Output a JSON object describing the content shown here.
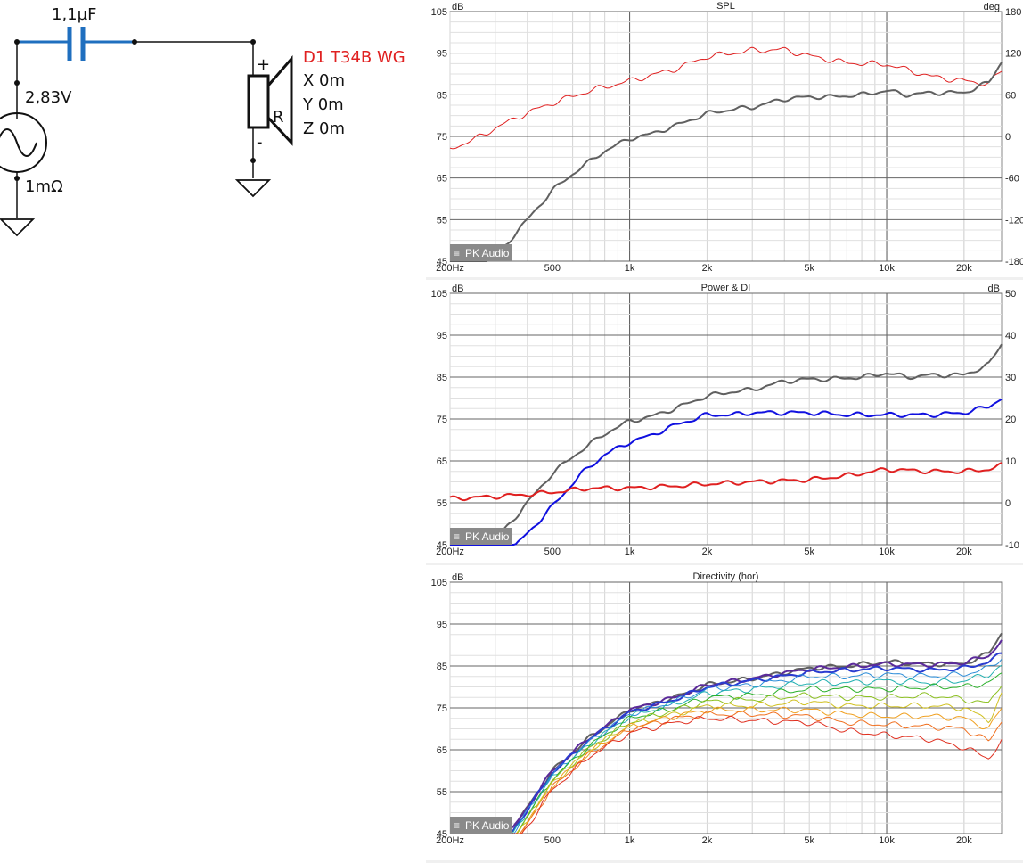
{
  "schematic": {
    "capacitor_label": "1,1µF",
    "source_voltage": "2,83V",
    "source_resistance": "1mΩ",
    "plus_sign": "+",
    "minus_sign": "-",
    "resistor_label": "R",
    "driver_name": "D1 T34B WG",
    "pos_x": "X  0m",
    "pos_y": "Y  0m",
    "pos_z": "Z  0m",
    "colors": {
      "wire": "#1f6fbf",
      "line": "#000000",
      "driver_name": "#e02020"
    }
  },
  "branding": {
    "badge": "PK Audio"
  },
  "chart_data": [
    {
      "type": "line",
      "title": "SPL",
      "ylabel": "dB",
      "y2label": "deg",
      "x_scale": "log",
      "xlim": [
        200,
        28000
      ],
      "ylim": [
        45,
        105
      ],
      "y2lim": [
        -180,
        180
      ],
      "x_ticks": [
        200,
        500,
        1000,
        2000,
        5000,
        10000,
        20000
      ],
      "x_tick_labels": [
        "200Hz",
        "500",
        "1k",
        "2k",
        "5k",
        "10k",
        "20k"
      ],
      "y_ticks": [
        45,
        55,
        65,
        75,
        85,
        95,
        105
      ],
      "y_tick_labels": [
        "45",
        "55",
        "65",
        "75",
        "85",
        "95",
        "105"
      ],
      "y2_ticks": [
        -180,
        -120,
        -60,
        0,
        60,
        120,
        180
      ],
      "y2_tick_labels": [
        "-180",
        "-120",
        "-60",
        "0",
        "60",
        "120",
        "180"
      ],
      "grid": true,
      "series": [
        {
          "color": "#e02020",
          "axis": "right",
          "width": 1,
          "x": [
            200,
            250,
            300,
            400,
            500,
            700,
            1000,
            1500,
            2000,
            3000,
            4000,
            5000,
            7000,
            10000,
            12000,
            15000,
            20000,
            25000,
            28000
          ],
          "y": [
            -18,
            -4,
            12,
            34,
            48,
            66,
            80,
            97,
            115,
            124,
            125,
            116,
            106,
            104,
            96,
            86,
            80,
            76,
            95
          ]
        },
        {
          "color": "#606060",
          "axis": "left",
          "width": 2,
          "x": [
            200,
            300,
            400,
            500,
            600,
            700,
            800,
            1000,
            1200,
            1500,
            2000,
            2500,
            3000,
            4000,
            5000,
            6000,
            8000,
            10000,
            12000,
            15000,
            20000,
            25000,
            28000
          ],
          "y": [
            40,
            46,
            55,
            62,
            66,
            69,
            71.5,
            74.5,
            75.5,
            77.5,
            80.5,
            81.5,
            82,
            84,
            84.5,
            84.5,
            85,
            86,
            85,
            85.5,
            85.5,
            88,
            93
          ]
        }
      ]
    },
    {
      "type": "line",
      "title": "Power & DI",
      "ylabel": "dB",
      "y2label": "dB",
      "x_scale": "log",
      "xlim": [
        200,
        28000
      ],
      "ylim": [
        45,
        105
      ],
      "y2lim": [
        -10,
        50
      ],
      "x_ticks": [
        200,
        500,
        1000,
        2000,
        5000,
        10000,
        20000
      ],
      "x_tick_labels": [
        "200Hz",
        "500",
        "1k",
        "2k",
        "5k",
        "10k",
        "20k"
      ],
      "y_ticks": [
        45,
        55,
        65,
        75,
        85,
        95,
        105
      ],
      "y_tick_labels": [
        "45",
        "55",
        "65",
        "75",
        "85",
        "95",
        "105"
      ],
      "y2_ticks": [
        -10,
        0,
        10,
        20,
        30,
        40,
        50
      ],
      "y2_tick_labels": [
        "-10",
        "0",
        "10",
        "20",
        "30",
        "40",
        "50"
      ],
      "grid": true,
      "series": [
        {
          "color": "#606060",
          "axis": "left",
          "width": 2,
          "x": [
            200,
            300,
            400,
            500,
            600,
            700,
            800,
            1000,
            1200,
            1500,
            2000,
            2500,
            3000,
            4000,
            5000,
            6000,
            8000,
            10000,
            12000,
            15000,
            20000,
            25000,
            28000
          ],
          "y": [
            40,
            46,
            55,
            62,
            66,
            69,
            71.5,
            74.5,
            75.5,
            77.5,
            80.5,
            81.5,
            82,
            84,
            84.5,
            84.5,
            85,
            86,
            85,
            85.5,
            85.5,
            88,
            93
          ]
        },
        {
          "color": "#1010e0",
          "axis": "left",
          "width": 2,
          "x": [
            200,
            350,
            450,
            550,
            650,
            800,
            1000,
            1200,
            1500,
            2000,
            2500,
            3000,
            4000,
            5000,
            7000,
            10000,
            15000,
            20000,
            25000,
            28000
          ],
          "y": [
            38,
            44,
            51,
            57,
            62,
            66.5,
            69.5,
            71,
            73.5,
            76,
            76,
            76.5,
            76.5,
            76.5,
            76,
            76,
            76,
            76.5,
            78,
            80
          ]
        },
        {
          "color": "#e02020",
          "axis": "right",
          "width": 2,
          "x": [
            200,
            300,
            400,
            500,
            700,
            1000,
            1500,
            2000,
            3000,
            5000,
            7000,
            10000,
            15000,
            20000,
            25000,
            28000
          ],
          "y": [
            1,
            1.5,
            2,
            2.5,
            3.5,
            3.5,
            4,
            4.5,
            5,
            5.5,
            6.5,
            8,
            7.5,
            7.5,
            8,
            9
          ]
        }
      ]
    },
    {
      "type": "line",
      "title": "Directivity (hor)",
      "ylabel": "dB",
      "x_scale": "log",
      "xlim": [
        200,
        28000
      ],
      "ylim": [
        45,
        105
      ],
      "x_ticks": [
        200,
        500,
        1000,
        2000,
        5000,
        10000,
        20000
      ],
      "x_tick_labels": [
        "200Hz",
        "500",
        "1k",
        "2k",
        "5k",
        "10k",
        "20k"
      ],
      "y_ticks": [
        45,
        55,
        65,
        75,
        85,
        95,
        105
      ],
      "y_tick_labels": [
        "45",
        "55",
        "65",
        "75",
        "85",
        "95",
        "105"
      ],
      "grid": true,
      "series": [
        {
          "color": "#606060",
          "width": 2,
          "x": [
            350,
            500,
            700,
            1000,
            1500,
            2000,
            3000,
            5000,
            7000,
            10000,
            15000,
            20000,
            25000,
            28000
          ],
          "y": [
            46,
            60,
            68,
            74.5,
            77.5,
            80.5,
            82,
            84.5,
            85,
            86,
            85.5,
            85.5,
            88,
            93
          ]
        },
        {
          "color": "#5b2a9a",
          "width": 2,
          "x": [
            350,
            500,
            700,
            1000,
            1500,
            2000,
            3000,
            5000,
            7000,
            10000,
            15000,
            20000,
            25000,
            28000
          ],
          "y": [
            46,
            60,
            68,
            74.5,
            77.5,
            80.5,
            82,
            84.3,
            84.8,
            85.5,
            85.3,
            85.8,
            87.5,
            91
          ]
        },
        {
          "color": "#2a3cd0",
          "width": 2,
          "x": [
            350,
            500,
            700,
            1000,
            1500,
            2000,
            3000,
            5000,
            7000,
            10000,
            15000,
            20000,
            25000,
            28000
          ],
          "y": [
            45.5,
            59.5,
            67.5,
            74,
            77,
            80,
            81.5,
            83.5,
            84,
            84.5,
            84,
            84.5,
            86,
            88
          ]
        },
        {
          "color": "#2a8cd8",
          "width": 1,
          "x": [
            350,
            500,
            700,
            1000,
            1500,
            2000,
            3000,
            5000,
            7000,
            10000,
            15000,
            20000,
            25000,
            28000
          ],
          "y": [
            45,
            59,
            67,
            73.5,
            76.5,
            79.5,
            80.5,
            82.5,
            82.5,
            83,
            82.5,
            83,
            84.5,
            87
          ]
        },
        {
          "color": "#20b0b0",
          "width": 1,
          "x": [
            350,
            500,
            700,
            1000,
            1500,
            2000,
            3000,
            5000,
            7000,
            10000,
            15000,
            20000,
            25000,
            28000
          ],
          "y": [
            44.5,
            58.5,
            66.5,
            73,
            76,
            78.5,
            79.5,
            81,
            81,
            81.5,
            81,
            81.5,
            83,
            85
          ]
        },
        {
          "color": "#2ab02a",
          "width": 1,
          "x": [
            350,
            500,
            700,
            1000,
            1500,
            2000,
            3000,
            5000,
            7000,
            10000,
            15000,
            20000,
            25000,
            28000
          ],
          "y": [
            44,
            58,
            66,
            72.5,
            75,
            77.5,
            78,
            79.5,
            79.5,
            79.5,
            80,
            80,
            81,
            83
          ]
        },
        {
          "color": "#8cc020",
          "width": 1,
          "x": [
            350,
            500,
            700,
            1000,
            1500,
            2000,
            3000,
            5000,
            7000,
            10000,
            15000,
            20000,
            25000,
            28000
          ],
          "y": [
            43.5,
            57.5,
            65.5,
            71.5,
            74.5,
            76.5,
            77,
            78,
            77.5,
            77.5,
            78,
            77,
            76,
            81
          ]
        },
        {
          "color": "#d0c020",
          "width": 1,
          "x": [
            350,
            500,
            700,
            1000,
            1500,
            2000,
            3000,
            5000,
            7000,
            10000,
            15000,
            20000,
            25000,
            28000
          ],
          "y": [
            43,
            57,
            65,
            71,
            73.5,
            75.5,
            75.5,
            76.5,
            75.5,
            75.5,
            75.5,
            75,
            72,
            78
          ]
        },
        {
          "color": "#f0a020",
          "width": 1,
          "x": [
            350,
            500,
            700,
            1000,
            1500,
            2000,
            3000,
            5000,
            7000,
            10000,
            15000,
            20000,
            25000,
            28000
          ],
          "y": [
            42.5,
            56.5,
            64.5,
            70.5,
            73,
            74.5,
            74.5,
            74.5,
            73.5,
            73,
            73,
            72.5,
            70,
            75
          ]
        },
        {
          "color": "#f07020",
          "width": 1,
          "x": [
            350,
            500,
            700,
            1000,
            1500,
            2000,
            3000,
            5000,
            7000,
            10000,
            15000,
            20000,
            25000,
            28000
          ],
          "y": [
            42,
            56,
            64,
            70,
            72.5,
            73.5,
            73.5,
            73,
            71.5,
            71,
            70.5,
            70,
            67,
            72
          ]
        },
        {
          "color": "#e03020",
          "width": 1,
          "x": [
            350,
            500,
            700,
            1000,
            1500,
            2000,
            3000,
            5000,
            7000,
            10000,
            15000,
            20000,
            25000,
            28000
          ],
          "y": [
            41.5,
            55.5,
            63.5,
            69,
            71.5,
            72.5,
            72,
            71.5,
            69.5,
            68.5,
            67.5,
            65.5,
            63,
            67
          ]
        }
      ]
    }
  ]
}
